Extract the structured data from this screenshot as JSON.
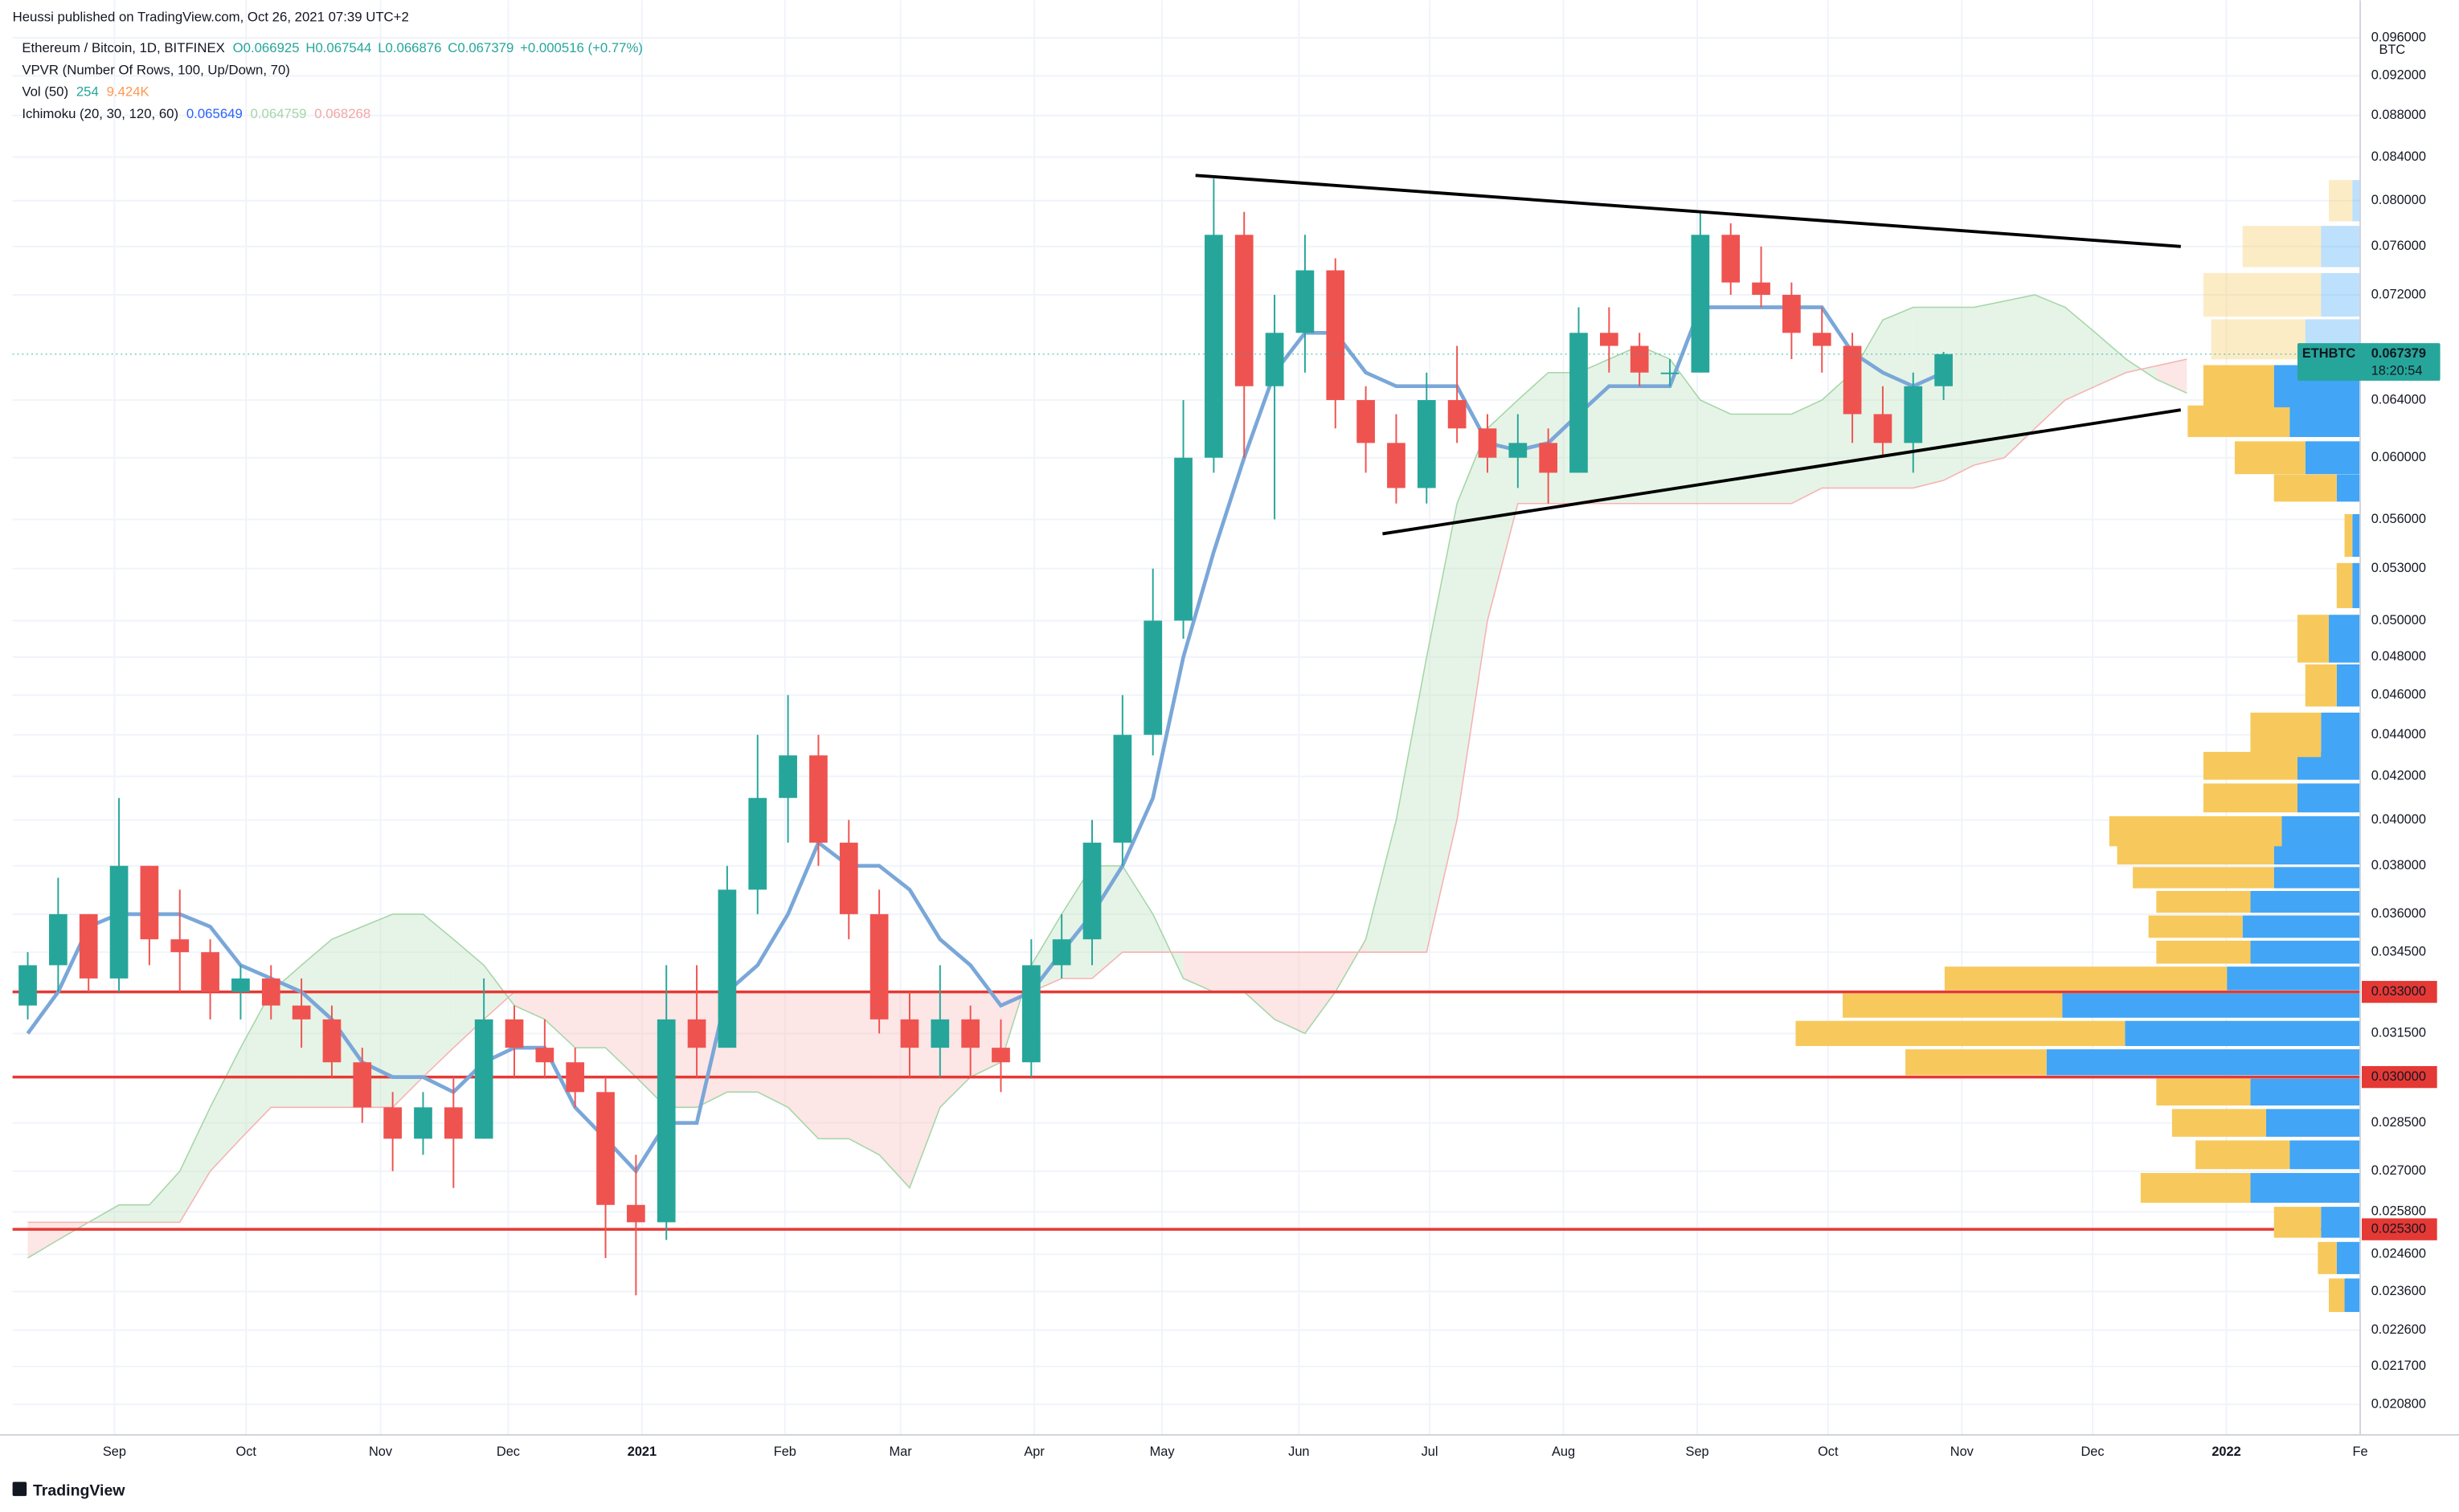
{
  "header": {
    "published": "Heussi published on TradingView.com, Oct 26, 2021 07:39 UTC+2",
    "symbol": "Ethereum / Bitcoin, 1D, BITFINEX",
    "ohlc": [
      "O0.066925",
      "H0.067544",
      "L0.066876",
      "C0.067379",
      "+0.000516 (+0.77%)"
    ],
    "vpvr": "VPVR (Number Of Rows, 100, Up/Down, 70)",
    "vol": [
      "Vol (50)",
      "254",
      "9.424K"
    ],
    "ichimoku": [
      "Ichimoku (20, 30, 120, 60)",
      "0.065649",
      "0.064759",
      "0.068268"
    ]
  },
  "chart_data": {
    "type": "candlestick",
    "axis_unit": "BTC",
    "log_scale": true,
    "xlim": [
      0,
      77.2
    ],
    "ylim": [
      0.0201,
      0.097
    ],
    "xticks": [
      {
        "value": 3.35,
        "label": "Sep"
      },
      {
        "value": 7.68,
        "label": "Oct"
      },
      {
        "value": 12.1,
        "label": "Nov"
      },
      {
        "value": 16.3,
        "label": "Dec"
      },
      {
        "value": 20.7,
        "label": "2021"
      },
      {
        "value": 25.4,
        "label": "Feb"
      },
      {
        "value": 29.2,
        "label": "Mar"
      },
      {
        "value": 33.6,
        "label": "Apr"
      },
      {
        "value": 37.8,
        "label": "May"
      },
      {
        "value": 42.3,
        "label": "Jun"
      },
      {
        "value": 46.6,
        "label": "Jul"
      },
      {
        "value": 51.0,
        "label": "Aug"
      },
      {
        "value": 55.4,
        "label": "Sep"
      },
      {
        "value": 59.7,
        "label": "Oct"
      },
      {
        "value": 64.1,
        "label": "Nov"
      },
      {
        "value": 68.4,
        "label": "Dec"
      },
      {
        "value": 72.8,
        "label": "2022"
      },
      {
        "value": 77.2,
        "label": "Fe"
      }
    ],
    "yticks": [
      {
        "value": 0.0208,
        "label": "0.020800"
      },
      {
        "value": 0.0217,
        "label": "0.021700"
      },
      {
        "value": 0.0226,
        "label": "0.022600"
      },
      {
        "value": 0.0236,
        "label": "0.023600"
      },
      {
        "value": 0.0246,
        "label": "0.024600"
      },
      {
        "value": 0.0258,
        "label": "0.025800"
      },
      {
        "value": 0.027,
        "label": "0.027000"
      },
      {
        "value": 0.0285,
        "label": "0.028500"
      },
      {
        "value": 0.0315,
        "label": "0.031500"
      },
      {
        "value": 0.0345,
        "label": "0.034500"
      },
      {
        "value": 0.036,
        "label": "0.036000"
      },
      {
        "value": 0.038,
        "label": "0.038000"
      },
      {
        "value": 0.04,
        "label": "0.040000"
      },
      {
        "value": 0.042,
        "label": "0.042000"
      },
      {
        "value": 0.044,
        "label": "0.044000"
      },
      {
        "value": 0.046,
        "label": "0.046000"
      },
      {
        "value": 0.048,
        "label": "0.048000"
      },
      {
        "value": 0.05,
        "label": "0.050000"
      },
      {
        "value": 0.053,
        "label": "0.053000"
      },
      {
        "value": 0.056,
        "label": "0.056000"
      },
      {
        "value": 0.06,
        "label": "0.060000"
      },
      {
        "value": 0.064,
        "label": "0.064000"
      },
      {
        "value": 0.072,
        "label": "0.072000"
      },
      {
        "value": 0.076,
        "label": "0.076000"
      },
      {
        "value": 0.08,
        "label": "0.080000"
      },
      {
        "value": 0.084,
        "label": "0.084000"
      },
      {
        "value": 0.088,
        "label": "0.088000"
      },
      {
        "value": 0.092,
        "label": "0.092000"
      },
      {
        "value": 0.096,
        "label": "0.096000"
      }
    ],
    "grid": true,
    "up_color": "#26a69a",
    "down_color": "#ef5350",
    "candles": {
      "open": [
        0.0325,
        0.034,
        0.036,
        0.0335,
        0.038,
        0.035,
        0.0345,
        0.033,
        0.0335,
        0.0325,
        0.032,
        0.0305,
        0.029,
        0.028,
        0.029,
        0.028,
        0.032,
        0.031,
        0.0305,
        0.0295,
        0.026,
        0.0255,
        0.032,
        0.031,
        0.037,
        0.041,
        0.043,
        0.039,
        0.036,
        0.032,
        0.031,
        0.032,
        0.031,
        0.0305,
        0.034,
        0.035,
        0.039,
        0.044,
        0.05,
        0.06,
        0.077,
        0.065,
        0.069,
        0.074,
        0.064,
        0.061,
        0.058,
        0.064,
        0.062,
        0.06,
        0.061,
        0.059,
        0.069,
        0.068,
        0.066,
        0.066,
        0.077,
        0.073,
        0.072,
        0.069,
        0.068,
        0.063,
        0.061,
        0.065
      ],
      "high": [
        0.0345,
        0.0375,
        0.036,
        0.041,
        0.038,
        0.037,
        0.035,
        0.034,
        0.034,
        0.0335,
        0.0325,
        0.031,
        0.0295,
        0.0295,
        0.03,
        0.0335,
        0.0325,
        0.032,
        0.031,
        0.03,
        0.0275,
        0.034,
        0.034,
        0.038,
        0.044,
        0.046,
        0.044,
        0.04,
        0.037,
        0.033,
        0.034,
        0.0325,
        0.032,
        0.035,
        0.036,
        0.04,
        0.046,
        0.053,
        0.064,
        0.082,
        0.079,
        0.072,
        0.077,
        0.075,
        0.065,
        0.063,
        0.066,
        0.068,
        0.063,
        0.063,
        0.062,
        0.071,
        0.071,
        0.069,
        0.067,
        0.079,
        0.078,
        0.076,
        0.073,
        0.071,
        0.069,
        0.065,
        0.066,
        0.067544
      ],
      "low": [
        0.032,
        0.033,
        0.033,
        0.033,
        0.034,
        0.033,
        0.032,
        0.032,
        0.032,
        0.031,
        0.03,
        0.0285,
        0.027,
        0.0275,
        0.0265,
        0.028,
        0.03,
        0.03,
        0.029,
        0.0245,
        0.0235,
        0.025,
        0.03,
        0.031,
        0.036,
        0.039,
        0.038,
        0.035,
        0.0315,
        0.03,
        0.03,
        0.03,
        0.0295,
        0.03,
        0.0335,
        0.034,
        0.038,
        0.043,
        0.049,
        0.059,
        0.06,
        0.056,
        0.066,
        0.062,
        0.059,
        0.057,
        0.057,
        0.061,
        0.059,
        0.058,
        0.057,
        0.059,
        0.066,
        0.065,
        0.065,
        0.066,
        0.072,
        0.071,
        0.067,
        0.066,
        0.061,
        0.06,
        0.059,
        0.064
      ],
      "close": [
        0.034,
        0.036,
        0.0335,
        0.038,
        0.035,
        0.0345,
        0.033,
        0.0335,
        0.0325,
        0.032,
        0.0305,
        0.029,
        0.028,
        0.029,
        0.028,
        0.032,
        0.031,
        0.0305,
        0.0295,
        0.026,
        0.0255,
        0.032,
        0.031,
        0.037,
        0.041,
        0.043,
        0.039,
        0.036,
        0.032,
        0.031,
        0.032,
        0.031,
        0.0305,
        0.034,
        0.035,
        0.039,
        0.044,
        0.05,
        0.06,
        0.077,
        0.065,
        0.069,
        0.074,
        0.064,
        0.061,
        0.058,
        0.064,
        0.062,
        0.06,
        0.061,
        0.059,
        0.069,
        0.068,
        0.066,
        0.066,
        0.077,
        0.073,
        0.072,
        0.069,
        0.068,
        0.063,
        0.061,
        0.065,
        0.067379
      ]
    },
    "kijun": {
      "color": "#7aa7d8",
      "values": [
        0.0315,
        0.033,
        0.0355,
        0.036,
        0.036,
        0.036,
        0.0355,
        0.034,
        0.0335,
        0.033,
        0.032,
        0.0305,
        0.03,
        0.03,
        0.0295,
        0.0305,
        0.031,
        0.031,
        0.029,
        0.028,
        0.027,
        0.0285,
        0.0285,
        0.033,
        0.034,
        0.036,
        0.039,
        0.038,
        0.038,
        0.037,
        0.035,
        0.034,
        0.0325,
        0.033,
        0.0345,
        0.036,
        0.038,
        0.041,
        0.048,
        0.054,
        0.06,
        0.066,
        0.069,
        0.069,
        0.066,
        0.065,
        0.065,
        0.065,
        0.061,
        0.0605,
        0.061,
        0.063,
        0.065,
        0.065,
        0.065,
        0.071,
        0.071,
        0.071,
        0.071,
        0.071,
        0.0675,
        0.066,
        0.065,
        0.066
      ]
    },
    "cloud": {
      "bull_color": "#c8e6c9",
      "bear_color": "#f8c7c7",
      "span_a": [
        0.0245,
        0.025,
        0.0255,
        0.026,
        0.026,
        0.027,
        0.029,
        0.031,
        0.033,
        0.034,
        0.035,
        0.0355,
        0.036,
        0.036,
        0.035,
        0.034,
        0.0325,
        0.032,
        0.031,
        0.031,
        0.03,
        0.029,
        0.029,
        0.0295,
        0.0295,
        0.029,
        0.028,
        0.028,
        0.0275,
        0.0265,
        0.029,
        0.03,
        0.0305,
        0.034,
        0.036,
        0.038,
        0.038,
        0.036,
        0.0335,
        0.033,
        0.033,
        0.032,
        0.0315,
        0.033,
        0.035,
        0.04,
        0.048,
        0.057,
        0.062,
        0.064,
        0.066,
        0.066,
        0.067,
        0.068,
        0.067,
        0.064,
        0.063,
        0.063,
        0.063,
        0.064,
        0.066,
        0.07,
        0.071,
        0.071,
        0.071,
        0.0715,
        0.072,
        0.071,
        0.069,
        0.067,
        0.0655,
        0.0645
      ],
      "span_b": [
        0.0255,
        0.0255,
        0.0255,
        0.0255,
        0.0255,
        0.0255,
        0.027,
        0.028,
        0.029,
        0.029,
        0.029,
        0.029,
        0.029,
        0.03,
        0.031,
        0.032,
        0.033,
        0.033,
        0.033,
        0.033,
        0.033,
        0.033,
        0.033,
        0.033,
        0.033,
        0.033,
        0.033,
        0.033,
        0.033,
        0.033,
        0.033,
        0.033,
        0.033,
        0.033,
        0.0335,
        0.0335,
        0.0345,
        0.0345,
        0.0345,
        0.0345,
        0.0345,
        0.0345,
        0.0345,
        0.0345,
        0.0345,
        0.0345,
        0.0345,
        0.04,
        0.05,
        0.057,
        0.057,
        0.057,
        0.057,
        0.057,
        0.057,
        0.057,
        0.057,
        0.057,
        0.057,
        0.058,
        0.058,
        0.058,
        0.058,
        0.0585,
        0.0595,
        0.06,
        0.062,
        0.064,
        0.065,
        0.066,
        0.0665,
        0.067
      ]
    },
    "trendlines": [
      {
        "x": [
          38.9,
          71.3
        ],
        "y": [
          0.0823,
          0.076
        ]
      },
      {
        "x": [
          45.05,
          71.3
        ],
        "y": [
          0.0551,
          0.0633
        ]
      }
    ],
    "hlines": [
      {
        "value": 0.033,
        "label": "0.033000"
      },
      {
        "value": 0.03,
        "label": "0.030000"
      },
      {
        "value": 0.0253,
        "label": "0.025300"
      }
    ],
    "hline_color": "#e53935",
    "last_price": {
      "value": 0.067379,
      "symbol": "ETHBTC",
      "label": "0.067379",
      "countdown": "18:20:54",
      "color": "#26a69a"
    },
    "volume_profile": {
      "up_color": "#42a5f5",
      "down_color": "#f7c95c",
      "prices": [
        0.0235,
        0.0245,
        0.0255,
        0.0265,
        0.0275,
        0.0285,
        0.0295,
        0.0305,
        0.0315,
        0.0325,
        0.0335,
        0.0345,
        0.0355,
        0.0365,
        0.0375,
        0.0385,
        0.0395,
        0.041,
        0.0425,
        0.044,
        0.0465,
        0.049,
        0.052,
        0.055,
        0.058,
        0.06,
        0.0625,
        0.065,
        0.0685,
        0.072,
        0.076,
        0.08
      ],
      "up": [
        10,
        15,
        25,
        70,
        45,
        60,
        70,
        200,
        150,
        190,
        85,
        70,
        75,
        70,
        55,
        55,
        50,
        40,
        40,
        25,
        15,
        20,
        5,
        5,
        15,
        35,
        45,
        55,
        35,
        25,
        25,
        5
      ],
      "down": [
        10,
        12,
        30,
        70,
        60,
        60,
        60,
        90,
        210,
        140,
        180,
        60,
        60,
        60,
        90,
        100,
        110,
        60,
        60,
        45,
        20,
        20,
        10,
        5,
        40,
        45,
        65,
        45,
        60,
        75,
        50,
        15
      ]
    }
  },
  "footer": {
    "brand": "TradingView"
  }
}
